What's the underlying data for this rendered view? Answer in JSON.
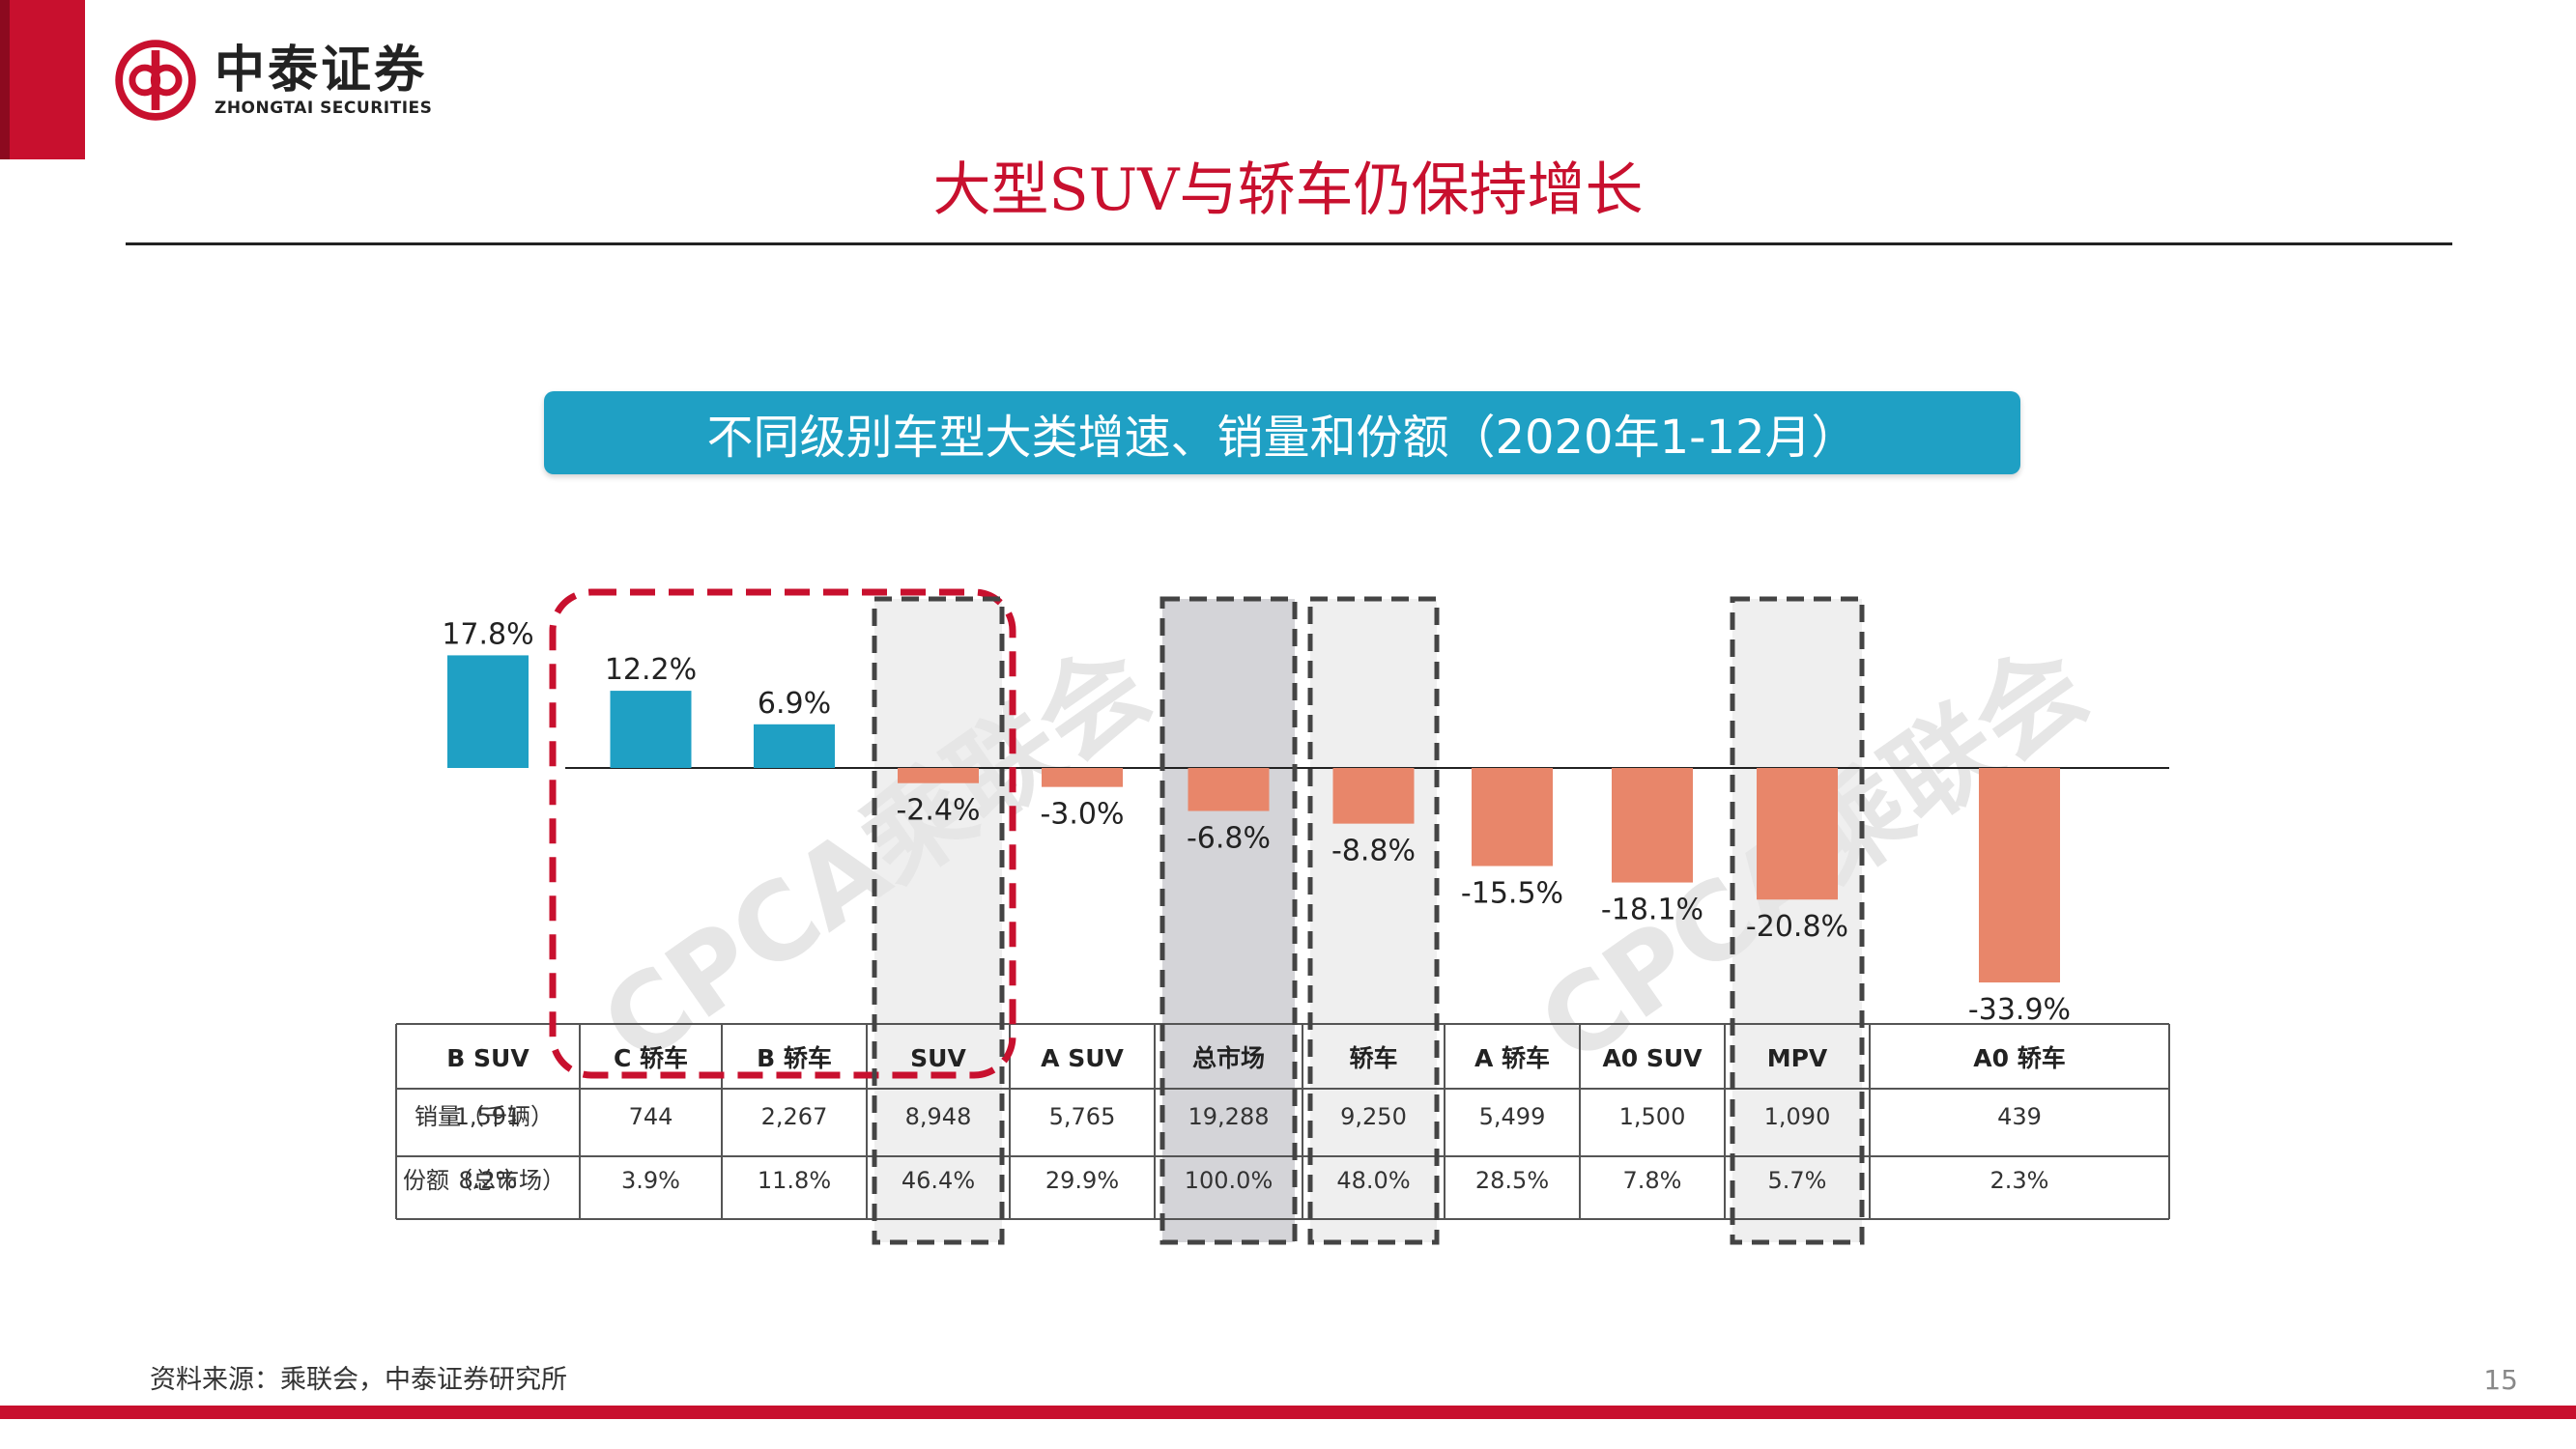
{
  "header": {
    "logo_cn": "中泰证券",
    "logo_en": "ZHONGTAI SECURITIES",
    "title": "大型SUV与轿车仍保持增长",
    "brand_color": "#c8102e"
  },
  "chart_data": {
    "type": "bar",
    "title": "不同级别车型大类增速、销量和份额（2020年1-12月）",
    "categories": [
      "B SUV",
      "C 轿车",
      "B 轿车",
      "SUV",
      "A SUV",
      "总市场",
      "轿车",
      "A 轿车",
      "A0 SUV",
      "MPV",
      "A0 轿车"
    ],
    "values": [
      17.8,
      12.2,
      6.9,
      -2.4,
      -3.0,
      -6.8,
      -8.8,
      -15.5,
      -18.1,
      -20.8,
      -33.9
    ],
    "value_labels": [
      "17.8%",
      "12.2%",
      "6.9%",
      "-2.4%",
      "-3.0%",
      "-6.8%",
      "-8.8%",
      "-15.5%",
      "-18.1%",
      "-20.8%",
      "-33.9%"
    ],
    "unit": "%",
    "colors": {
      "positive": "#1fa0c4",
      "negative": "#e8866a",
      "highlight": "#c8102e"
    },
    "ylim": [
      -35,
      20
    ],
    "table": {
      "rows": [
        {
          "label": "销量（千辆）",
          "values": [
            "1,591",
            "744",
            "2,267",
            "8,948",
            "5,765",
            "19,288",
            "9,250",
            "5,499",
            "1,500",
            "1,090",
            "439"
          ]
        },
        {
          "label": "份额（总市场）",
          "values": [
            "8.2%",
            "3.9%",
            "11.8%",
            "46.4%",
            "29.9%",
            "100.0%",
            "48.0%",
            "28.5%",
            "7.8%",
            "5.7%",
            "2.3%"
          ]
        }
      ]
    }
  },
  "footer": {
    "source": "资料来源：乘联会，中泰证券研究所",
    "page": "15"
  }
}
